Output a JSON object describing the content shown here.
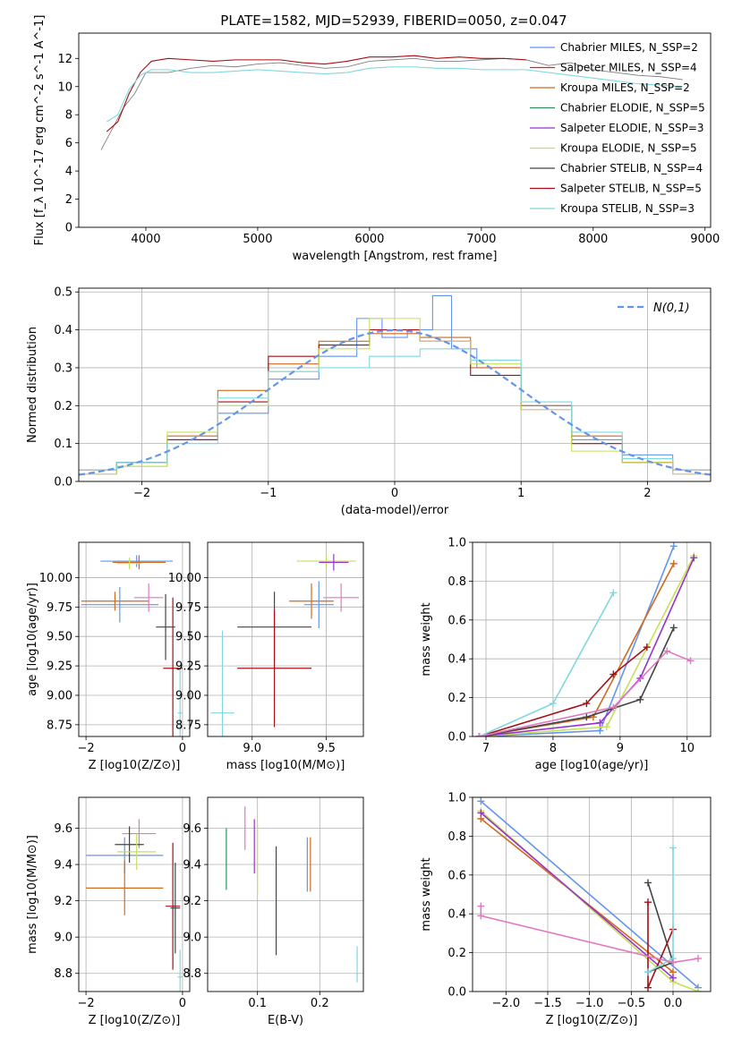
{
  "figure": {
    "title": "PLATE=1582, MJD=52939, FIBERID=0050, z=0.047"
  },
  "chart_data": [
    {
      "id": "spectrum",
      "type": "line",
      "xlabel": "wavelength [Angstrom, rest frame]",
      "ylabel": "Flux [f_λ 10^-17 erg cm^-2 s^-1 A^-1]",
      "xlim": [
        3400,
        9050
      ],
      "ylim": [
        0,
        13.8
      ],
      "xticks": [
        4000,
        5000,
        6000,
        7000,
        8000,
        9000
      ],
      "yticks": [
        0,
        2,
        4,
        6,
        8,
        10,
        12
      ],
      "grid": false,
      "legend_position": "top-right",
      "legend": [
        {
          "label": "Chabrier MILES, N_SSP=2",
          "color": "#6495ed"
        },
        {
          "label": "Salpeter MILES, N_SSP=4",
          "color": "#d62728"
        },
        {
          "label": "Kroupa MILES, N_SSP=2",
          "color": "#d2691e"
        },
        {
          "label": "Chabrier ELODIE, N_SSP=5",
          "color": "#2e8b57"
        },
        {
          "label": "Salpeter ELODIE, N_SSP=3",
          "color": "#9932cc"
        },
        {
          "label": "Kroupa ELODIE, N_SSP=5",
          "color": "#c5e15a"
        },
        {
          "label": "Chabrier STELIB, N_SSP=4",
          "color": "#444444"
        },
        {
          "label": "Salpeter STELIB, N_SSP=5",
          "color": "#a50f15"
        },
        {
          "label": "Kroupa STELIB, N_SSP=3",
          "color": "#7fd8df"
        }
      ],
      "series": [
        {
          "role": "data",
          "color": "#808080",
          "x": [
            3600,
            3700,
            3800,
            3900,
            4000,
            4200,
            4400,
            4600,
            4800,
            5000,
            5200,
            5400,
            5600,
            5800,
            6000,
            6200,
            6400,
            6600,
            6800,
            7000,
            7200,
            7400,
            7600,
            7800,
            8000,
            8200,
            8400,
            8600,
            8800
          ],
          "y": [
            5.5,
            7.0,
            8.5,
            9.5,
            11.0,
            11.0,
            11.3,
            11.5,
            11.4,
            11.6,
            11.7,
            11.5,
            11.3,
            11.4,
            11.8,
            11.9,
            12.0,
            11.8,
            11.8,
            11.9,
            12.0,
            11.9,
            11.5,
            11.7,
            11.2,
            11.0,
            10.8,
            10.7,
            10.5
          ]
        },
        {
          "role": "model",
          "color": "#a50f15",
          "x": [
            3650,
            3750,
            3850,
            3950,
            4050,
            4200,
            4400,
            4600,
            4800,
            5000,
            5200,
            5400,
            5600,
            5800,
            6000,
            6200,
            6400,
            6600,
            6800,
            7000,
            7200,
            7400
          ],
          "y": [
            6.8,
            7.5,
            9.5,
            11.0,
            11.8,
            12.0,
            11.9,
            11.8,
            11.9,
            11.9,
            11.9,
            11.7,
            11.6,
            11.8,
            12.1,
            12.1,
            12.2,
            12.0,
            12.1,
            12.0,
            12.0,
            11.9
          ]
        },
        {
          "role": "model",
          "color": "#7fd8df",
          "x": [
            3650,
            3750,
            3850,
            3950,
            4050,
            4200,
            4400,
            4600,
            4800,
            5000,
            5200,
            5400,
            5600,
            5800,
            6000,
            6200,
            6400,
            6600,
            6800,
            7000,
            7200,
            7400,
            7600,
            7800,
            8000,
            8200,
            8400,
            8600,
            8800
          ],
          "y": [
            7.5,
            8.0,
            9.8,
            10.8,
            11.2,
            11.2,
            11.0,
            11.0,
            11.1,
            11.2,
            11.1,
            11.0,
            10.9,
            11.0,
            11.3,
            11.4,
            11.4,
            11.3,
            11.3,
            11.2,
            11.2,
            11.2,
            11.0,
            10.8,
            10.6,
            10.4,
            10.2,
            10.1,
            10.0
          ]
        }
      ]
    },
    {
      "id": "residuals",
      "type": "line",
      "xlabel": "(data-model)/error",
      "ylabel": "Normed distribution",
      "xlim": [
        -2.5,
        2.5
      ],
      "ylim": [
        0,
        0.51
      ],
      "xticks": [
        -2,
        -1,
        0,
        1,
        2
      ],
      "yticks": [
        0.0,
        0.1,
        0.2,
        0.3,
        0.4,
        0.5
      ],
      "grid": true,
      "legend_position": "top-right",
      "legend": [
        {
          "label": "N(0,1)",
          "color": "#6495ed",
          "style": "dashed"
        }
      ],
      "gaussian": {
        "mean": 0,
        "sigma": 1
      },
      "histograms": [
        {
          "color": "#6495ed",
          "x": [
            -2.4,
            -2.0,
            -1.6,
            -1.2,
            -0.8,
            -0.4,
            -0.2,
            0.0,
            0.2,
            0.4,
            0.5,
            0.8,
            1.2,
            1.6,
            2.0,
            2.4
          ],
          "y": [
            0.03,
            0.05,
            0.11,
            0.18,
            0.27,
            0.33,
            0.43,
            0.38,
            0.4,
            0.49,
            0.35,
            0.3,
            0.2,
            0.11,
            0.07,
            0.03
          ]
        },
        {
          "color": "#d2691e",
          "x": [
            -2.4,
            -2.0,
            -1.6,
            -1.2,
            -0.8,
            -0.4,
            0.0,
            0.4,
            0.8,
            1.2,
            1.6,
            2.0,
            2.4
          ],
          "y": [
            0.03,
            0.04,
            0.12,
            0.24,
            0.31,
            0.37,
            0.39,
            0.38,
            0.3,
            0.2,
            0.12,
            0.05,
            0.03
          ]
        },
        {
          "color": "#a50f15",
          "x": [
            -2.4,
            -2.0,
            -1.6,
            -1.2,
            -0.8,
            -0.4,
            0.0,
            0.4,
            0.8,
            1.2,
            1.6,
            2.0,
            2.4
          ],
          "y": [
            0.02,
            0.05,
            0.11,
            0.21,
            0.33,
            0.36,
            0.4,
            0.37,
            0.28,
            0.19,
            0.1,
            0.05,
            0.02
          ]
        },
        {
          "color": "#c5e15a",
          "x": [
            -2.4,
            -2.0,
            -1.6,
            -1.2,
            -0.8,
            -0.4,
            0.0,
            0.4,
            0.8,
            1.2,
            1.6,
            2.0,
            2.4
          ],
          "y": [
            0.02,
            0.04,
            0.13,
            0.2,
            0.29,
            0.35,
            0.43,
            0.37,
            0.31,
            0.19,
            0.08,
            0.05,
            0.02
          ]
        },
        {
          "color": "#7fd8df",
          "x": [
            -2.4,
            -2.0,
            -1.6,
            -1.2,
            -0.8,
            -0.4,
            0.0,
            0.4,
            0.8,
            1.2,
            1.6,
            2.0,
            2.4
          ],
          "y": [
            0.03,
            0.05,
            0.1,
            0.22,
            0.29,
            0.3,
            0.33,
            0.35,
            0.32,
            0.21,
            0.13,
            0.06,
            0.03
          ]
        }
      ]
    },
    {
      "id": "age_vs_Z",
      "type": "scatter",
      "xlabel": "Z [log10(Z/Z⊙)]",
      "ylabel": "age [log10(age/yr)]",
      "xlim": [
        -2.15,
        0.15
      ],
      "ylim": [
        8.65,
        10.3
      ],
      "xticks": [
        -2,
        0
      ],
      "yticks": [
        8.75,
        9.0,
        9.25,
        9.5,
        9.75,
        10.0
      ],
      "grid": true,
      "points": [
        {
          "x": -0.95,
          "y": 10.14,
          "xerr": 0.75,
          "yerr": 0.05,
          "color": "#6495ed"
        },
        {
          "x": -0.9,
          "y": 10.13,
          "xerr": 0.55,
          "yerr": 0.06,
          "color": "#d2691e"
        },
        {
          "x": -1.1,
          "y": 10.12,
          "xerr": 0.25,
          "yerr": 0.05,
          "color": "#c5e15a"
        },
        {
          "x": -1.4,
          "y": 9.8,
          "xerr": 0.7,
          "yerr": 0.08,
          "color": "#d2691e"
        },
        {
          "x": -1.3,
          "y": 9.77,
          "xerr": 0.8,
          "yerr": 0.15,
          "color": "#6495ed"
        },
        {
          "x": -0.7,
          "y": 9.83,
          "xerr": 0.3,
          "yerr": 0.12,
          "color": "#e377c2"
        },
        {
          "x": -0.35,
          "y": 9.58,
          "xerr": 0.2,
          "yerr": 0.28,
          "color": "#444444"
        },
        {
          "x": -0.2,
          "y": 9.23,
          "xerr": 0.2,
          "yerr": 0.6,
          "color": "#a50f15"
        },
        {
          "x": -0.05,
          "y": 8.85,
          "xerr": 0.05,
          "yerr": 0.4,
          "color": "#7fd8df"
        }
      ]
    },
    {
      "id": "age_vs_mass",
      "type": "scatter",
      "xlabel": "mass [log10(M/M⊙)]",
      "ylabel": "",
      "xlim": [
        8.7,
        9.75
      ],
      "ylim": [
        8.65,
        10.3
      ],
      "xticks": [
        9.0,
        9.5
      ],
      "yticks": [
        8.75,
        9.0,
        9.25,
        9.5,
        9.75,
        10.0
      ],
      "grid": true,
      "points": [
        {
          "x": 9.5,
          "y": 10.14,
          "xerr": 0.2,
          "yerr": 0.05,
          "color": "#c5e15a"
        },
        {
          "x": 9.55,
          "y": 10.13,
          "xerr": 0.1,
          "yerr": 0.07,
          "color": "#9932cc"
        },
        {
          "x": 9.4,
          "y": 9.8,
          "xerr": 0.15,
          "yerr": 0.15,
          "color": "#d2691e"
        },
        {
          "x": 9.6,
          "y": 9.83,
          "xerr": 0.12,
          "yerr": 0.12,
          "color": "#e377c2"
        },
        {
          "x": 9.45,
          "y": 9.77,
          "xerr": 0.1,
          "yerr": 0.2,
          "color": "#6495ed"
        },
        {
          "x": 9.15,
          "y": 9.58,
          "xerr": 0.25,
          "yerr": 0.3,
          "color": "#444444"
        },
        {
          "x": 9.15,
          "y": 9.23,
          "xerr": 0.25,
          "yerr": 0.5,
          "color": "#a50f15"
        },
        {
          "x": 8.8,
          "y": 8.85,
          "xerr": 0.08,
          "yerr": 0.7,
          "color": "#7fd8df"
        }
      ]
    },
    {
      "id": "massweight_vs_age",
      "type": "line",
      "xlabel": "age [log10(age/yr)]",
      "ylabel": "mass weight",
      "xlim": [
        6.8,
        10.35
      ],
      "ylim": [
        0,
        1.0
      ],
      "xticks": [
        7,
        8,
        9,
        10
      ],
      "yticks": [
        0.0,
        0.2,
        0.4,
        0.6,
        0.8,
        1.0
      ],
      "grid": true,
      "series": [
        {
          "color": "#6495ed",
          "x": [
            6.9,
            8.7,
            9.8
          ],
          "y": [
            0.0,
            0.03,
            0.98
          ]
        },
        {
          "color": "#d2691e",
          "x": [
            6.9,
            8.6,
            9.8
          ],
          "y": [
            0.0,
            0.1,
            0.89
          ]
        },
        {
          "color": "#c5e15a",
          "x": [
            6.9,
            8.8,
            10.1
          ],
          "y": [
            0.0,
            0.05,
            0.93
          ]
        },
        {
          "color": "#9932cc",
          "x": [
            6.9,
            8.7,
            9.3,
            10.1
          ],
          "y": [
            0.0,
            0.07,
            0.3,
            0.92
          ]
        },
        {
          "color": "#444444",
          "x": [
            6.9,
            8.5,
            9.3,
            9.8
          ],
          "y": [
            0.0,
            0.1,
            0.19,
            0.56
          ]
        },
        {
          "color": "#a50f15",
          "x": [
            6.9,
            8.5,
            8.9,
            9.4
          ],
          "y": [
            0.0,
            0.17,
            0.32,
            0.46
          ]
        },
        {
          "color": "#7fd8df",
          "x": [
            6.9,
            8.0,
            8.9
          ],
          "y": [
            0.0,
            0.17,
            0.74
          ]
        },
        {
          "color": "#e377c2",
          "x": [
            6.9,
            8.9,
            9.7,
            10.05
          ],
          "y": [
            0.0,
            0.15,
            0.44,
            0.39
          ]
        }
      ]
    },
    {
      "id": "mass_vs_Z",
      "type": "scatter",
      "xlabel": "Z [log10(Z/Z⊙)]",
      "ylabel": "mass [log10(M/M⊙)]",
      "xlim": [
        -2.15,
        0.15
      ],
      "ylim": [
        8.7,
        9.77
      ],
      "xticks": [
        -2,
        0
      ],
      "yticks": [
        8.8,
        9.0,
        9.2,
        9.4,
        9.6
      ],
      "grid": true,
      "points": [
        {
          "x": -1.2,
          "y": 9.45,
          "xerr": 0.8,
          "yerr": 0.1,
          "color": "#6495ed"
        },
        {
          "x": -1.2,
          "y": 9.27,
          "xerr": 0.8,
          "yerr": 0.15,
          "color": "#d2691e"
        },
        {
          "x": -0.9,
          "y": 9.57,
          "xerr": 0.35,
          "yerr": 0.08,
          "color": "#e377c2"
        },
        {
          "x": -1.1,
          "y": 9.51,
          "xerr": 0.3,
          "yerr": 0.1,
          "color": "#444444"
        },
        {
          "x": -0.95,
          "y": 9.47,
          "xerr": 0.4,
          "yerr": 0.1,
          "color": "#c5e15a"
        },
        {
          "x": -0.2,
          "y": 9.17,
          "xerr": 0.15,
          "yerr": 0.35,
          "color": "#a50f15"
        },
        {
          "x": -0.15,
          "y": 9.16,
          "xerr": 0.1,
          "yerr": 0.25,
          "color": "#444444"
        },
        {
          "x": -0.05,
          "y": 8.78,
          "xerr": 0.05,
          "yerr": 0.15,
          "color": "#7fd8df"
        }
      ]
    },
    {
      "id": "mass_vs_EBV",
      "type": "scatter",
      "xlabel": "E(B-V)",
      "ylabel": "",
      "xlim": [
        0.02,
        0.27
      ],
      "ylim": [
        8.7,
        9.77
      ],
      "xticks": [
        0.1,
        0.2
      ],
      "yticks": [
        8.8,
        9.0,
        9.2,
        9.4,
        9.6
      ],
      "grid": true,
      "points": [
        {
          "x": 0.05,
          "y": 9.43,
          "yerr": 0.17,
          "color": "#2e8b57"
        },
        {
          "x": 0.08,
          "y": 9.6,
          "yerr": 0.12,
          "color": "#e377c2"
        },
        {
          "x": 0.1,
          "y": 9.43,
          "yerr": 0.2,
          "color": "#c5e15a"
        },
        {
          "x": 0.095,
          "y": 9.5,
          "yerr": 0.15,
          "color": "#9932cc"
        },
        {
          "x": 0.13,
          "y": 9.2,
          "yerr": 0.3,
          "color": "#444444"
        },
        {
          "x": 0.18,
          "y": 9.4,
          "yerr": 0.15,
          "color": "#6495ed"
        },
        {
          "x": 0.185,
          "y": 9.4,
          "yerr": 0.15,
          "color": "#d2691e"
        },
        {
          "x": 0.26,
          "y": 8.85,
          "yerr": 0.1,
          "color": "#7fd8df"
        }
      ]
    },
    {
      "id": "massweight_vs_Z",
      "type": "line",
      "xlabel": "Z [log10(Z/Z⊙)]",
      "ylabel": "mass weight",
      "xlim": [
        -2.4,
        0.45
      ],
      "ylim": [
        0,
        1.0
      ],
      "xticks": [
        -2.0,
        -1.5,
        -1.0,
        -0.5,
        0.0
      ],
      "yticks": [
        0.0,
        0.2,
        0.4,
        0.6,
        0.8,
        1.0
      ],
      "grid": true,
      "series": [
        {
          "color": "#6495ed",
          "x": [
            -2.3,
            0.3
          ],
          "y": [
            0.98,
            0.02
          ]
        },
        {
          "color": "#d2691e",
          "x": [
            -2.3,
            0.0
          ],
          "y": [
            0.89,
            0.1
          ]
        },
        {
          "color": "#c5e15a",
          "x": [
            -2.3,
            0.0,
            0.3
          ],
          "y": [
            0.93,
            0.05,
            0.0
          ]
        },
        {
          "color": "#9932cc",
          "x": [
            -2.3,
            0.0
          ],
          "y": [
            0.92,
            0.07
          ]
        },
        {
          "color": "#444444",
          "x": [
            -0.3,
            0.0,
            -0.3
          ],
          "y": [
            0.56,
            0.15,
            0.1
          ]
        },
        {
          "color": "#a50f15",
          "x": [
            -0.3,
            -0.3,
            0.0
          ],
          "y": [
            0.46,
            0.02,
            0.32
          ]
        },
        {
          "color": "#7fd8df",
          "x": [
            -0.3,
            0.0,
            0.0
          ],
          "y": [
            0.1,
            0.17,
            0.74
          ]
        },
        {
          "color": "#e377c2",
          "x": [
            -2.3,
            -2.3,
            0.0,
            0.3
          ],
          "y": [
            0.44,
            0.39,
            0.15,
            0.17
          ]
        }
      ]
    }
  ]
}
